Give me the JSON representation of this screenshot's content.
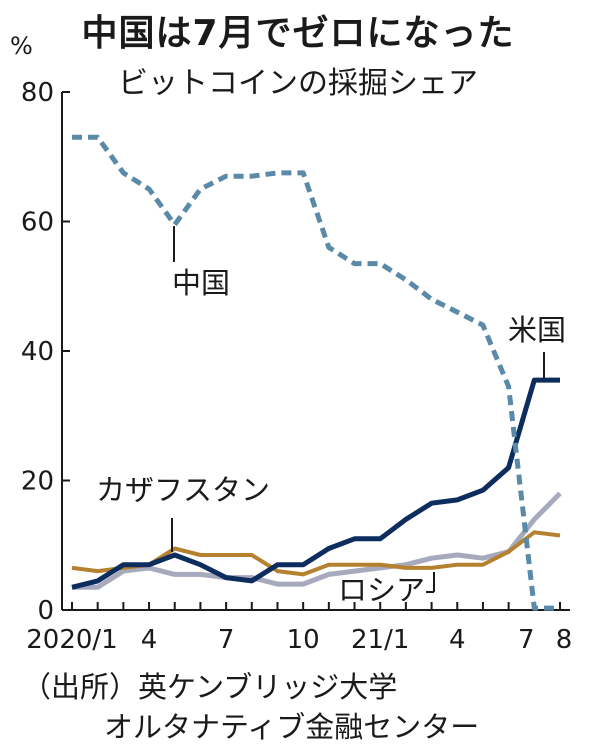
{
  "header": {
    "title": "中国は7月でゼロになった",
    "subtitle": "ビットコインの採掘シェア",
    "unit": "%"
  },
  "source": {
    "line1": "（出所）英ケンブリッジ大学",
    "line2": "オルタナティブ金融センター"
  },
  "colors": {
    "china": "#5b8aa8",
    "usa": "#0d2d5e",
    "kazakhstan": "#b5812e",
    "russia": "#a7a9bd",
    "axis": "#1a1a1a"
  },
  "chart_data": {
    "type": "line",
    "title": "中国は7月でゼロになった",
    "subtitle": "ビットコインの採掘シェア",
    "ylabel": "%",
    "ylim": [
      0,
      80
    ],
    "yticks": [
      0,
      20,
      40,
      60,
      80
    ],
    "x_tick_labels": [
      {
        "month": 0,
        "label": "2020/1"
      },
      {
        "month": 3,
        "label": "4"
      },
      {
        "month": 6,
        "label": "7"
      },
      {
        "month": 9,
        "label": "10"
      },
      {
        "month": 12,
        "label": "21/1"
      },
      {
        "month": 15,
        "label": "4"
      },
      {
        "month": 18,
        "label": "7"
      },
      {
        "month": 19,
        "label": "8"
      }
    ],
    "series": [
      {
        "name": "中国",
        "key": "china",
        "style": "dashed",
        "points": [
          [
            0,
            73
          ],
          [
            1,
            73
          ],
          [
            2,
            67.5
          ],
          [
            3,
            65
          ],
          [
            4,
            59.5
          ],
          [
            5,
            65
          ],
          [
            6,
            67
          ],
          [
            7,
            67
          ],
          [
            8,
            67.5
          ],
          [
            9,
            67.5
          ],
          [
            10,
            56
          ],
          [
            11,
            53.5
          ],
          [
            12,
            53.5
          ],
          [
            13,
            51
          ],
          [
            14,
            48
          ],
          [
            15,
            46
          ],
          [
            16,
            44
          ],
          [
            17,
            34.5
          ],
          [
            18,
            0.3
          ],
          [
            19,
            0.3
          ]
        ]
      },
      {
        "name": "米国",
        "key": "usa",
        "style": "solid",
        "points": [
          [
            0,
            3.5
          ],
          [
            1,
            4.5
          ],
          [
            2,
            7
          ],
          [
            3,
            7
          ],
          [
            4,
            8.5
          ],
          [
            5,
            7
          ],
          [
            6,
            5
          ],
          [
            7,
            4.5
          ],
          [
            8,
            7
          ],
          [
            9,
            7
          ],
          [
            10,
            9.5
          ],
          [
            11,
            11
          ],
          [
            12,
            11
          ],
          [
            13,
            14
          ],
          [
            14,
            16.5
          ],
          [
            15,
            17
          ],
          [
            16,
            18.5
          ],
          [
            17,
            22
          ],
          [
            18,
            35.5
          ],
          [
            19,
            35.5
          ]
        ]
      },
      {
        "name": "カザフスタン",
        "key": "kazakhstan",
        "style": "solid",
        "points": [
          [
            0,
            6.5
          ],
          [
            1,
            6
          ],
          [
            2,
            6.5
          ],
          [
            3,
            7
          ],
          [
            4,
            9.5
          ],
          [
            5,
            8.5
          ],
          [
            6,
            8.5
          ],
          [
            7,
            8.5
          ],
          [
            8,
            6
          ],
          [
            9,
            5.5
          ],
          [
            10,
            7
          ],
          [
            11,
            7
          ],
          [
            12,
            7
          ],
          [
            13,
            6.5
          ],
          [
            14,
            6.5
          ],
          [
            15,
            7
          ],
          [
            16,
            7
          ],
          [
            17,
            9
          ],
          [
            18,
            12
          ],
          [
            19,
            11.5
          ]
        ]
      },
      {
        "name": "ロシア",
        "key": "russia",
        "style": "solid",
        "points": [
          [
            0,
            3.5
          ],
          [
            1,
            3.5
          ],
          [
            2,
            6
          ],
          [
            3,
            6.5
          ],
          [
            4,
            5.5
          ],
          [
            5,
            5.5
          ],
          [
            6,
            5
          ],
          [
            7,
            5
          ],
          [
            8,
            4
          ],
          [
            9,
            4
          ],
          [
            10,
            5.5
          ],
          [
            11,
            6
          ],
          [
            12,
            6.5
          ],
          [
            13,
            7
          ],
          [
            14,
            8
          ],
          [
            15,
            8.5
          ],
          [
            16,
            8
          ],
          [
            17,
            9
          ],
          [
            18,
            14
          ],
          [
            19,
            18
          ]
        ]
      }
    ]
  }
}
